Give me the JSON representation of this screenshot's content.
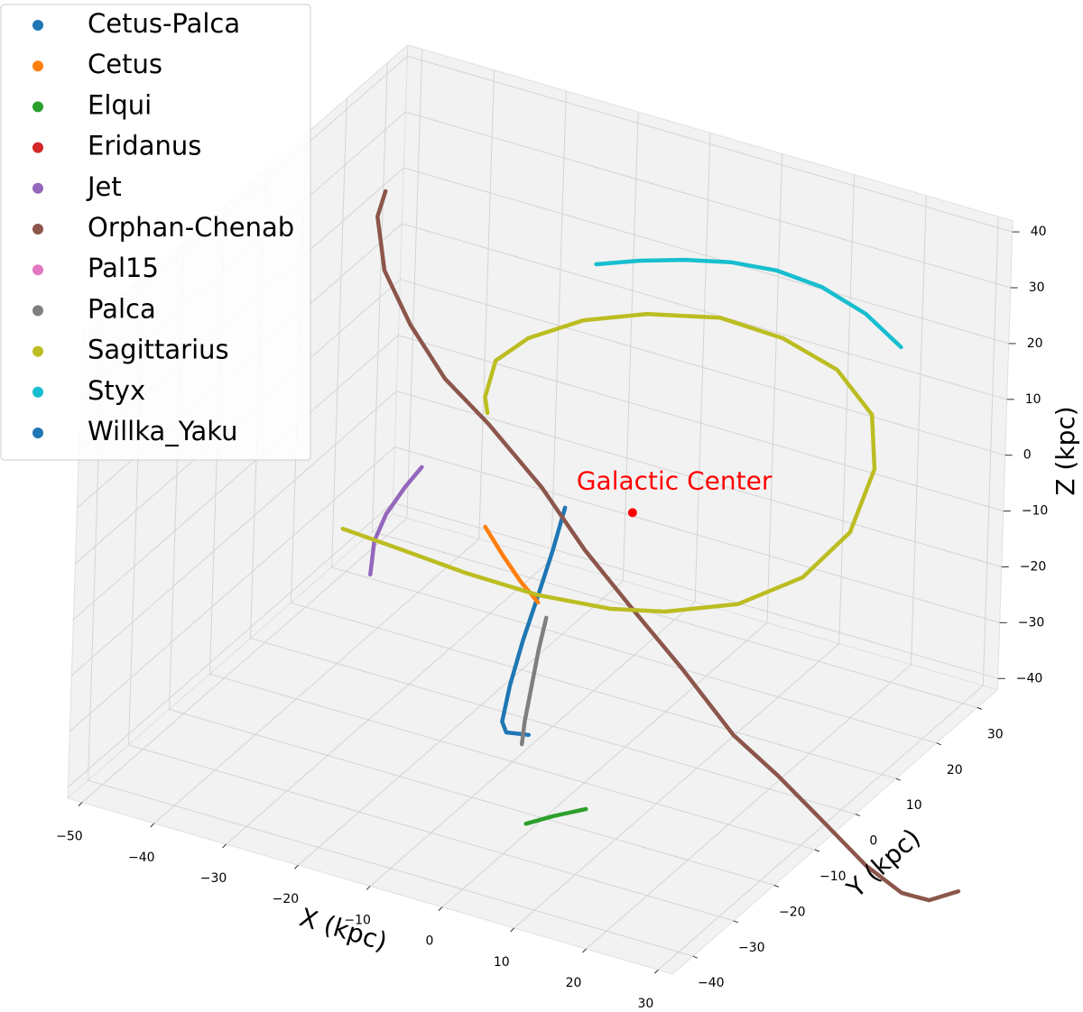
{
  "chart_data": {
    "type": "line3d",
    "xlabel": "X (kpc)",
    "ylabel": "Y (kpc)",
    "zlabel": "Z (kpc)",
    "xlim": [
      -52,
      32
    ],
    "ylim": [
      -45,
      35
    ],
    "zlim": [
      -42,
      42
    ],
    "xticks": [
      {
        "value": -50,
        "label": "−50"
      },
      {
        "value": -40,
        "label": "−40"
      },
      {
        "value": -30,
        "label": "−30"
      },
      {
        "value": -20,
        "label": "−20"
      },
      {
        "value": -10,
        "label": "−10"
      },
      0,
      10,
      20,
      30
    ],
    "yticks": [
      {
        "value": -40,
        "label": "−40"
      },
      {
        "value": -30,
        "label": "−30"
      },
      {
        "value": -20,
        "label": "−20"
      },
      {
        "value": -10,
        "label": "−10"
      },
      0,
      10,
      20,
      30
    ],
    "zticks": [
      {
        "value": -40,
        "label": "−40"
      },
      {
        "value": -30,
        "label": "−30"
      },
      {
        "value": -20,
        "label": "−20"
      },
      {
        "value": -10,
        "label": "−10"
      },
      0,
      10,
      20,
      30,
      40
    ],
    "grid": true,
    "legend": "upper left",
    "series": [
      {
        "name": "Cetus-Palca",
        "color": "#1f77b4",
        "x": [
          -9.3,
          -10.8,
          -12.6,
          -14.5,
          -16.1,
          -17.0,
          -16.4,
          -13.3
        ],
        "y": [
          0,
          0,
          0,
          0,
          0,
          0,
          0,
          0
        ],
        "z": [
          -2.6,
          -10.8,
          -19.5,
          -28.3,
          -37.0,
          -43.8,
          -45.5,
          -44.8
        ]
      },
      {
        "name": "Cetus",
        "color": "#ff7f0e",
        "x": [
          -20.2,
          -17.7,
          -15.1,
          -12.6
        ],
        "y": [
          0,
          0,
          0,
          0
        ],
        "z": [
          -10.1,
          -14.2,
          -18.0,
          -20.8
        ]
      },
      {
        "name": "Elqui",
        "color": "#2ca02c",
        "x": [
          3.0,
          6.8,
          11.2
        ],
        "y": [
          -30,
          -30,
          -30
        ],
        "z": [
          -35.5,
          -32.7,
          -29.8
        ]
      },
      {
        "name": "Eridanus",
        "color": "#d62728",
        "x": [],
        "y": [],
        "z": []
      },
      {
        "name": "Jet",
        "color": "#9467bd",
        "x": [
          -29.2,
          -31.4,
          -33.9,
          -35.4,
          -35.8
        ],
        "y": [
          0,
          0,
          0,
          0,
          0
        ],
        "z": [
          -2.8,
          -7.2,
          -13.0,
          -18.4,
          -24.5
        ]
      },
      {
        "name": "Orphan-Chenab",
        "color": "#8c564b",
        "x": [
          -35.4,
          -36.4,
          -35.2,
          -31.4,
          -26.4,
          -20.2,
          -12.6,
          -6.4,
          -0.1,
          7.4,
          14.9,
          21.2,
          27.5,
          33.7,
          38.7,
          42.5,
          46.5
        ],
        "y": [
          0,
          0,
          0,
          0,
          0,
          0,
          0,
          0,
          0,
          0,
          0,
          0,
          0,
          0,
          0,
          0,
          0
        ],
        "z": [
          44.3,
          39.4,
          30.2,
          21.9,
          14.1,
          8.3,
          -0.2,
          -9.1,
          -16.5,
          -25.0,
          -34.3,
          -39.2,
          -44.9,
          -50.6,
          -53.6,
          -53.5,
          -50.4
        ]
      },
      {
        "name": "Pal15",
        "color": "#e377c2",
        "x": [],
        "y": [],
        "z": []
      },
      {
        "name": "Palca",
        "color": "#7f7f7f",
        "x": [
          -11.4,
          -12.3,
          -13.1,
          -13.9,
          -14.2
        ],
        "y": [
          0,
          0,
          0,
          0,
          0
        ],
        "z": [
          -23.1,
          -29.1,
          -35.9,
          -42.6,
          -46.8
        ]
      },
      {
        "name": "Sagittarius",
        "color": "#bcbd22",
        "x": [
          -20.4,
          -20.8,
          -19.5,
          -15.1,
          -7.6,
          1.1,
          11.2,
          19.9,
          27.5,
          32.5,
          33.1,
          30.0,
          23.7,
          14.9,
          4.9,
          -2.6,
          -12.6,
          -22.7,
          -31.4,
          -39.8
        ],
        "y": [
          0,
          0,
          0,
          0,
          0,
          0,
          0,
          0,
          0,
          0,
          0,
          0,
          0,
          0,
          0,
          0,
          0,
          0,
          0,
          0
        ],
        "z": [
          10.2,
          12.9,
          19.9,
          25.6,
          31.6,
          36.0,
          39.1,
          38.7,
          35.9,
          29.7,
          20.2,
          7.7,
          -2.7,
          -10.8,
          -15.9,
          -18.2,
          -19.5,
          -19.3,
          -18.5,
          -17.8
        ]
      },
      {
        "name": "Styx",
        "color": "#17becf",
        "x": [
          -6.1,
          -0.1,
          6.2,
          12.4,
          18.7,
          25.0,
          31.2,
          36.2
        ],
        "y": [
          0,
          0,
          0,
          0,
          0,
          0,
          0,
          0
        ],
        "z": [
          42.2,
          45.1,
          47.6,
          49.5,
          50.4,
          49.8,
          47.3,
          43.2
        ]
      },
      {
        "name": "Willka_Yaku",
        "color": "#1f77b4",
        "x": [],
        "y": [],
        "z": []
      }
    ],
    "annotations": [
      {
        "text": "Galactic Center",
        "x": 0,
        "y": 0,
        "z": 0,
        "color": "#ff0000"
      }
    ]
  }
}
